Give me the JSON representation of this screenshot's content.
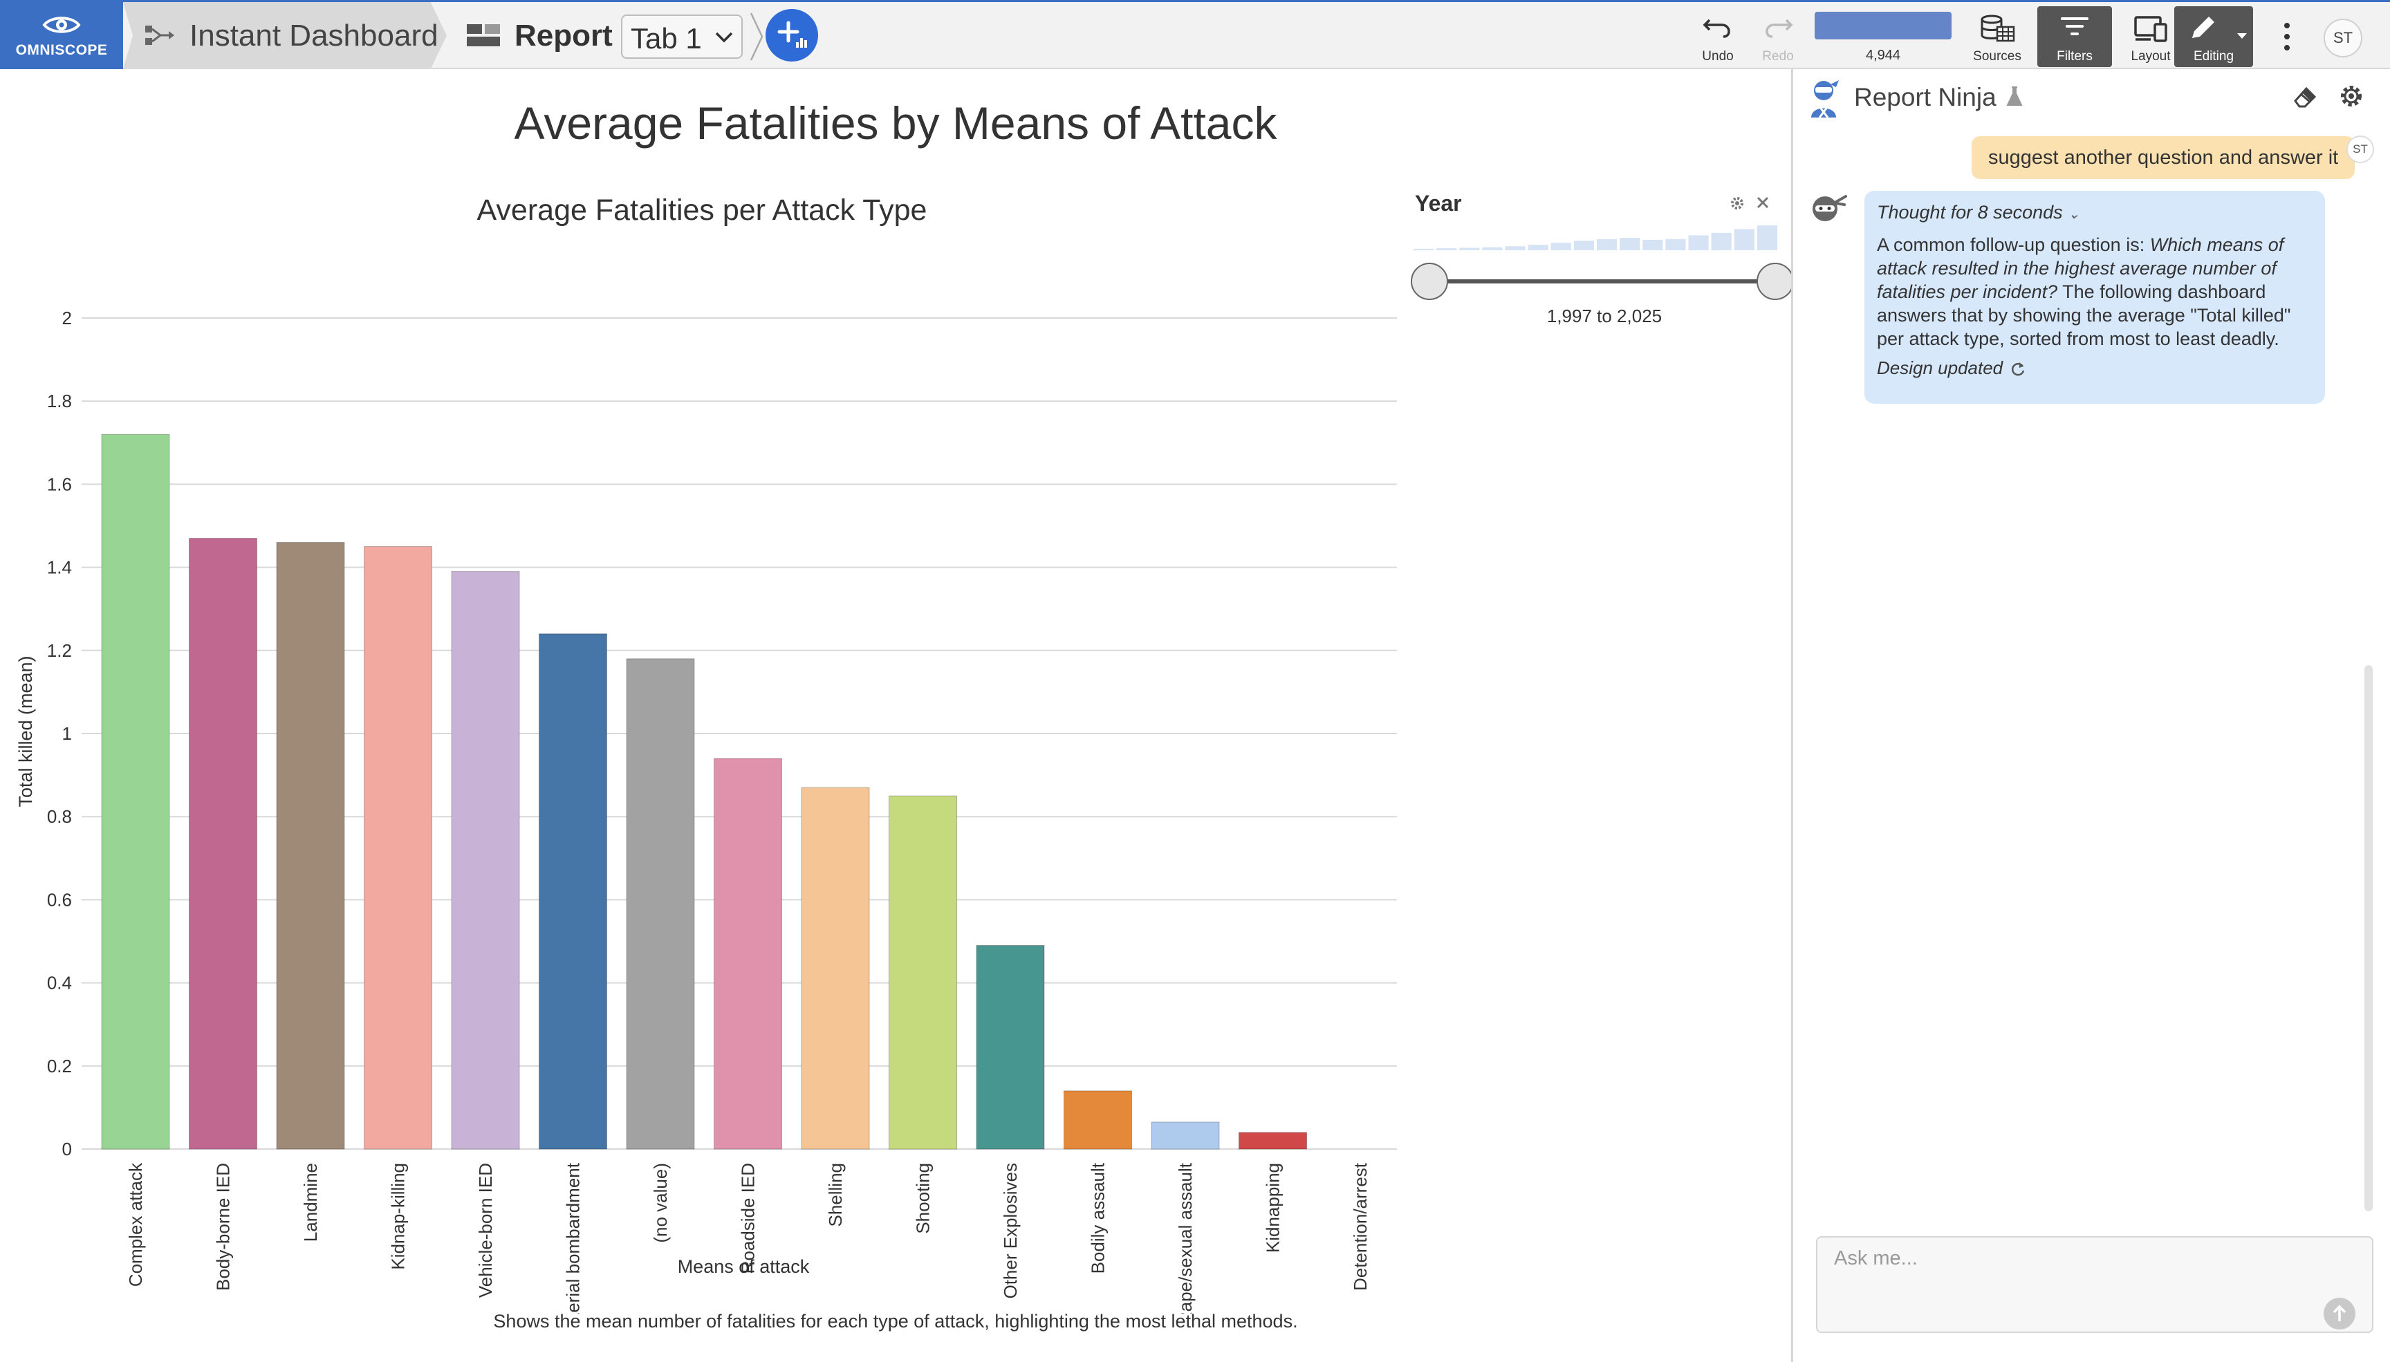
{
  "app": {
    "logo_text": "OMNISCOPE",
    "breadcrumb_project": "Instant Dashboard",
    "breadcrumb_report": "Report",
    "tab_selected": "Tab 1",
    "add_icon": "plus-chart-icon"
  },
  "toolbar": {
    "undo_label": "Undo",
    "redo_label": "Redo",
    "record_count": "4,944",
    "sources_label": "Sources",
    "filters_label": "Filters",
    "layout_label": "Layout",
    "editing_label": "Editing",
    "user_initials": "ST"
  },
  "report": {
    "page_title": "Average Fatalities by Means of Attack",
    "description": "Shows the mean number of fatalities for each type of attack, highlighting the most lethal methods."
  },
  "chart_data": {
    "type": "bar",
    "title": "Average Fatalities per Attack Type",
    "xlabel": "Means of attack",
    "ylabel": "Total killed (mean)",
    "ylim": [
      0,
      2
    ],
    "yticks": [
      "0",
      "0.2",
      "0.4",
      "0.6",
      "0.8",
      "1",
      "1.2",
      "1.4",
      "1.6",
      "1.8",
      "2"
    ],
    "categories": [
      "Complex attack",
      "Body-borne IED",
      "Landmine",
      "Kidnap-killing",
      "Vehicle-born IED",
      "Aerial bombardment",
      "(no value)",
      "Roadside IED",
      "Shelling",
      "Shooting",
      "Other Explosives",
      "Bodily assault",
      "Rape/sexual assault",
      "Kidnapping",
      "Detention/arrest"
    ],
    "values": [
      1.72,
      1.47,
      1.46,
      1.45,
      1.39,
      1.24,
      1.18,
      0.94,
      0.87,
      0.85,
      0.49,
      0.14,
      0.065,
      0.04,
      0
    ],
    "colors": [
      "#98d594",
      "#c06890",
      "#9e8a76",
      "#f2aaa0",
      "#c8b2d6",
      "#4675a8",
      "#a2a2a2",
      "#e092ac",
      "#f5c596",
      "#c4da7c",
      "#489690",
      "#e4883a",
      "#aecbee",
      "#d04848",
      "#8fb5e0"
    ],
    "grid": true,
    "legend": "none"
  },
  "filter": {
    "title": "Year",
    "range_label": "1,997 to 2,025",
    "min_year": 1997,
    "max_year": 2025
  },
  "ninja": {
    "title": "Report Ninja",
    "user_message": "suggest another question and answer it",
    "user_initials": "ST",
    "thought_label": "Thought for 8 seconds",
    "answer_prefix": "A common follow-up question is: ",
    "answer_question": "Which means of attack resulted in the highest average number of fatalities per incident?",
    "answer_rest": " The following dashboard answers that by showing the average \"Total killed\" per attack type, sorted from most to least deadly.",
    "design_updated": "Design updated",
    "input_placeholder": "Ask me..."
  },
  "colors": {
    "brand_blue": "#3a6fc4",
    "add_button": "#2e6bd6",
    "user_bubble": "#fbe1b0",
    "assistant_bubble": "#d8e8fb"
  }
}
